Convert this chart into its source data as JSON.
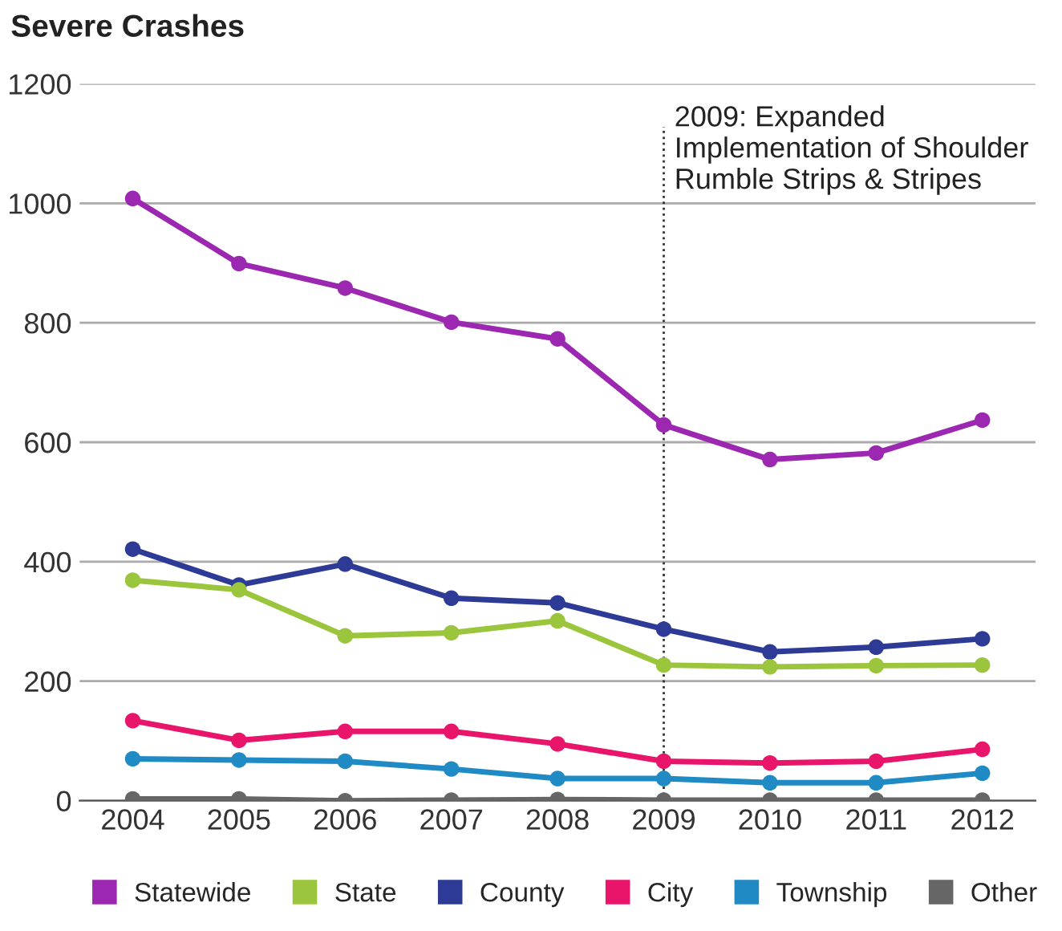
{
  "chart_data": {
    "type": "line",
    "title": "Severe Crashes",
    "categories": [
      "2004",
      "2005",
      "2006",
      "2007",
      "2008",
      "2009",
      "2010",
      "2011",
      "2012"
    ],
    "series": [
      {
        "name": "Statewide",
        "color": "#9c27b0",
        "values": [
          1008,
          899,
          858,
          801,
          773,
          629,
          571,
          582,
          637
        ]
      },
      {
        "name": "State",
        "color": "#9bc53d",
        "values": [
          369,
          353,
          276,
          281,
          301,
          227,
          224,
          226,
          227
        ]
      },
      {
        "name": "County",
        "color": "#2e3b96",
        "values": [
          421,
          361,
          396,
          339,
          331,
          287,
          249,
          257,
          271
        ]
      },
      {
        "name": "City",
        "color": "#e8156b",
        "values": [
          134,
          101,
          116,
          116,
          95,
          66,
          63,
          66,
          86
        ]
      },
      {
        "name": "Township",
        "color": "#1f8ac4",
        "values": [
          70,
          68,
          66,
          53,
          37,
          37,
          30,
          30,
          46
        ]
      },
      {
        "name": "Other",
        "color": "#666666",
        "values": [
          3,
          3,
          0,
          1,
          2,
          1,
          1,
          1,
          1
        ]
      }
    ],
    "ylim": [
      0,
      1200
    ],
    "yticks": [
      0,
      200,
      400,
      600,
      800,
      1000,
      1200
    ],
    "grid": "y",
    "legend": "bottom",
    "marker": "circle",
    "line_style": "solid",
    "ref_lines": [
      {
        "axis": "x",
        "value": "2009",
        "label": "2009: Expanded Implementation of Shoulder Rumble Strips & Stripes",
        "color": "#333333",
        "line_style": "dotted"
      }
    ]
  }
}
